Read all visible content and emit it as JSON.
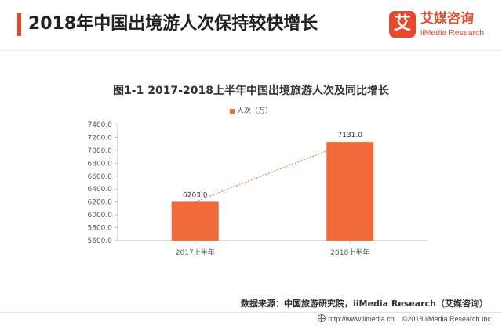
{
  "header": {
    "title": "2018年中国出境游人次保持较快增长",
    "accent_color": "#e8492e"
  },
  "logo": {
    "mark": "艾",
    "name_cn": "艾媒咨询",
    "name_en": "iiMedia Research",
    "color": "#e8492e"
  },
  "chart_data": {
    "type": "bar",
    "title": "图1-1 2017-2018上半年中国出境旅游人次及同比增长",
    "categories": [
      "2017上半年",
      "2018上半年"
    ],
    "series": [
      {
        "name": "人次（万）",
        "values": [
          6203.0,
          7131.0
        ],
        "color": "#f26a3b"
      }
    ],
    "data_labels": [
      "6203.0",
      "7131.0"
    ],
    "ylim": [
      5600,
      7400
    ],
    "yticks": [
      5600,
      5800,
      6000,
      6200,
      6400,
      6600,
      6800,
      7000,
      7200,
      7400
    ],
    "ytick_labels": [
      "5600.0",
      "5800.0",
      "6000.0",
      "6200.0",
      "6400.0",
      "6600.0",
      "6800.0",
      "7000.0",
      "7200.0",
      "7400.0"
    ],
    "trend_line": true,
    "trend_color": "#f26a3b",
    "grid": false,
    "legend_position": "top-center"
  },
  "source": "数据来源：中国旅游研究院，iiMedia Research（艾媒咨询）",
  "footer": {
    "url": "http://www.iimedia.cn",
    "copyright": "©2018 iiMedia Research Inc"
  }
}
